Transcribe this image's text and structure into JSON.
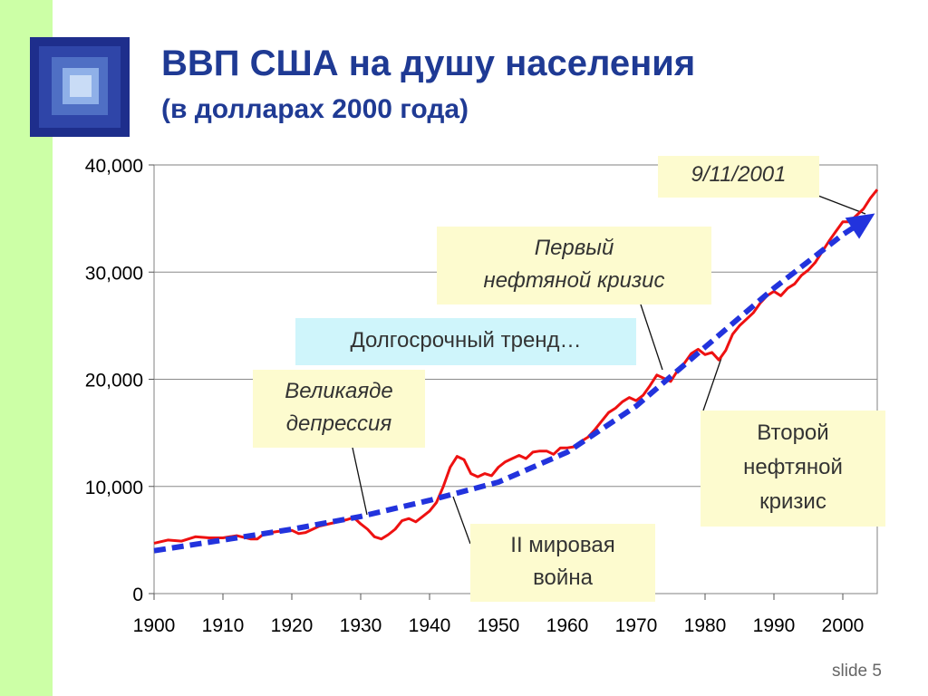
{
  "slide": {
    "title": "ВВП США на душу населения",
    "subtitle": "(в долларах 2000 года)",
    "slide_number": "slide 5"
  },
  "chart_data": {
    "type": "line",
    "x_ticks": [
      "1900",
      "1910",
      "1920",
      "1930",
      "1940",
      "1950",
      "1960",
      "1970",
      "1980",
      "1990",
      "2000"
    ],
    "y_ticks": [
      "0",
      "10,000",
      "20,000",
      "30,000",
      "40,000"
    ],
    "xlim": [
      1900,
      2005
    ],
    "ylim": [
      0,
      40000
    ],
    "grid": "horizontal",
    "series": [
      {
        "color": "#ee1111",
        "x": [
          1900,
          1902,
          1904,
          1906,
          1908,
          1910,
          1912,
          1914,
          1915,
          1916,
          1918,
          1920,
          1921,
          1922,
          1924,
          1926,
          1928,
          1929,
          1930,
          1931,
          1932,
          1933,
          1934,
          1935,
          1936,
          1937,
          1938,
          1939,
          1940,
          1941,
          1942,
          1943,
          1944,
          1945,
          1946,
          1947,
          1948,
          1949,
          1950,
          1951,
          1952,
          1953,
          1954,
          1955,
          1956,
          1957,
          1958,
          1959,
          1960,
          1961,
          1962,
          1963,
          1964,
          1965,
          1966,
          1967,
          1968,
          1969,
          1970,
          1971,
          1972,
          1973,
          1974,
          1975,
          1976,
          1977,
          1978,
          1979,
          1980,
          1981,
          1982,
          1983,
          1984,
          1985,
          1986,
          1987,
          1988,
          1989,
          1990,
          1991,
          1992,
          1993,
          1994,
          1995,
          1996,
          1997,
          1998,
          1999,
          2000,
          2001,
          2002,
          2003,
          2004,
          2005
        ],
        "y": [
          4700,
          5000,
          4900,
          5300,
          5200,
          5200,
          5400,
          5100,
          5100,
          5600,
          5800,
          5900,
          5600,
          5700,
          6300,
          6600,
          6900,
          7100,
          6500,
          6000,
          5300,
          5100,
          5500,
          6000,
          6800,
          7000,
          6700,
          7200,
          7700,
          8500,
          10000,
          11800,
          12800,
          12500,
          11200,
          10900,
          11200,
          11000,
          11800,
          12300,
          12600,
          12900,
          12600,
          13200,
          13300,
          13300,
          13000,
          13600,
          13600,
          13700,
          14200,
          14600,
          15300,
          16100,
          16900,
          17300,
          17900,
          18300,
          18000,
          18500,
          19400,
          20400,
          20100,
          19800,
          20800,
          21500,
          22400,
          22800,
          22300,
          22500,
          21800,
          22700,
          24200,
          25000,
          25600,
          26200,
          27100,
          27800,
          28200,
          27800,
          28500,
          28900,
          29700,
          30200,
          30900,
          31900,
          32900,
          33800,
          34700,
          34700,
          35300,
          35900,
          36900,
          37700
        ]
      },
      {
        "color": "#2233dd",
        "style": "dashed",
        "x": [
          1900,
          1910,
          1920,
          1930,
          1940,
          1950,
          1960,
          1970,
          1980,
          1990,
          2000,
          2004
        ],
        "y": [
          4000,
          5000,
          6000,
          7200,
          8700,
          10400,
          13200,
          17500,
          23000,
          28500,
          33500,
          35200
        ]
      }
    ],
    "annotations": [
      "9/11/2001",
      "Первый нефтяной кризис",
      "Долгосрочный тренд…",
      "Великаяде депрессия",
      "Второй нефтяной кризис",
      "II мировая война"
    ]
  },
  "annotations": {
    "sept11": "9/11/2001",
    "oil1_line1": "Первый",
    "oil1_line2": "нефтяной кризис",
    "trend": "Долгосрочный тренд…",
    "depression_line1": "Великаяде",
    "depression_line2": "депрессия",
    "oil2_line1": "Второй",
    "oil2_line2": "нефтяной",
    "oil2_line3": "кризис",
    "ww2_line1": "II мировая",
    "ww2_line2": "война"
  }
}
